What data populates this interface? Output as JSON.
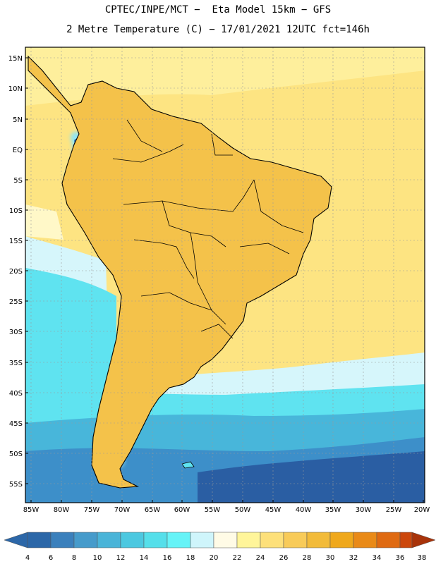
{
  "header": {
    "line1": "CPTEC/INPE/MCT −  Eta Model 15km − GFS",
    "line2": "2 Metre Temperature (C) − 17/01/2021 12UTC fct=146h"
  },
  "latitude_labels": [
    "15N",
    "10N",
    "5N",
    "EQ",
    "5S",
    "10S",
    "15S",
    "20S",
    "25S",
    "30S",
    "35S",
    "40S",
    "45S",
    "50S",
    "55S"
  ],
  "longitude_labels": [
    "85W",
    "80W",
    "75W",
    "70W",
    "65W",
    "60W",
    "55W",
    "50W",
    "45W",
    "40W",
    "35W",
    "30W",
    "25W",
    "20W"
  ],
  "colorbar": {
    "labels": [
      "4",
      "6",
      "8",
      "10",
      "12",
      "14",
      "16",
      "18",
      "20",
      "22",
      "24",
      "26",
      "28",
      "30",
      "32",
      "34",
      "36",
      "38"
    ],
    "colors": [
      "#2c67a8",
      "#3b80bc",
      "#469bcb",
      "#4ab4d8",
      "#4cc8e0",
      "#55dfea",
      "#66f3f7",
      "#cff5fb",
      "#fffbe6",
      "#fff59a",
      "#fde07a",
      "#f8cb59",
      "#f2bb3a",
      "#efa81c",
      "#e98a18",
      "#df6a12",
      "#cc470c",
      "#a8330a"
    ]
  },
  "palette": {
    "ocean_deep": "#2a5ea3",
    "ocean_mid": "#3d8fc9",
    "ocean_light": "#48b6da",
    "ocean_cyan": "#5fe3f0",
    "ocean_pale": "#d6f6fb",
    "ocean_warm": "#fff8c8",
    "tropics": "#fde482",
    "land_warm": "#f4c24a",
    "land_hot": "#eba32a",
    "land_hotter": "#de7f1a",
    "andes_cold": "#3d86c4",
    "andes_cyan": "#8fe6f4"
  },
  "chart_data": {
    "type": "heatmap",
    "title": "2 Metre Temperature (C)",
    "model": "Eta Model 15km - GFS",
    "run": "17/01/2021 12UTC",
    "forecast_hour": 146,
    "lon_range": [
      -86,
      -20
    ],
    "lat_range": [
      -58,
      17
    ],
    "units": "C",
    "color_levels": [
      4,
      6,
      8,
      10,
      12,
      14,
      16,
      18,
      20,
      22,
      24,
      26,
      28,
      30,
      32,
      34,
      36,
      38
    ]
  }
}
